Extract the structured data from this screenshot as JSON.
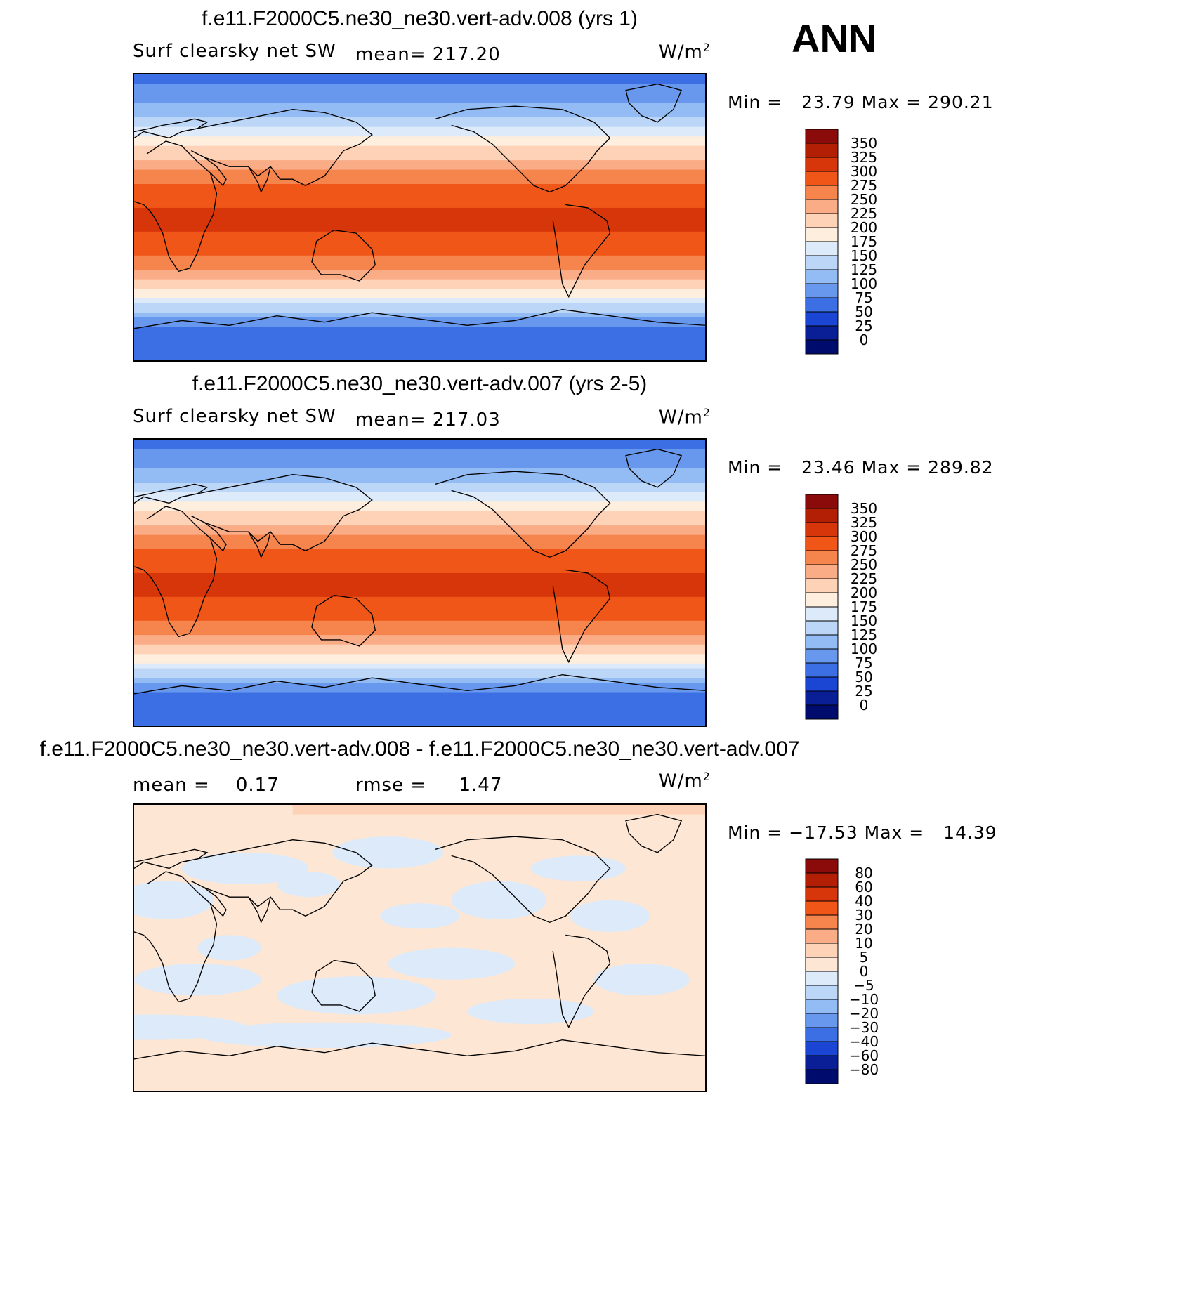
{
  "season": "ANN",
  "unit_label": "W/m",
  "unit_sup": "2",
  "panels": [
    {
      "title": "f.e11.F2000C5.ne30_ne30.vert-adv.008 (yrs 1)",
      "variable": "Surf clearsky net SW",
      "mean_text": "mean= 217.20",
      "minmax_text": "Min =   23.79 Max = 290.21"
    },
    {
      "title": "f.e11.F2000C5.ne30_ne30.vert-adv.007 (yrs 2-5)",
      "variable": "Surf clearsky net SW",
      "mean_text": "mean= 217.03",
      "minmax_text": "Min =   23.46 Max = 289.82"
    },
    {
      "title": "f.e11.F2000C5.ne30_ne30.vert-adv.008 - f.e11.F2000C5.ne30_ne30.vert-adv.007",
      "mean_text": "mean =    0.17",
      "rmse_text": "rmse =     1.47",
      "minmax_text": "Min = −17.53 Max =   14.39"
    }
  ],
  "chart_data": [
    {
      "type": "heatmap",
      "title": "f.e11.F2000C5.ne30_ne30.vert-adv.008 (yrs 1)",
      "levels": [
        "350",
        "325",
        "300",
        "275",
        "250",
        "225",
        "200",
        "175",
        "150",
        "125",
        "100",
        "75",
        "50",
        "25",
        "0"
      ],
      "colors": [
        "#8b0a0a",
        "#b31f05",
        "#d6360a",
        "#f05618",
        "#f5844d",
        "#f9ac85",
        "#fdd2b7",
        "#fdeedd",
        "#dceafa",
        "#bcd6f7",
        "#93bbf4",
        "#6898ee",
        "#3c6fe4",
        "#1b45d3",
        "#0a1e96",
        "#000b6e"
      ],
      "zonal_profile": [
        [
          90,
          40
        ],
        [
          70,
          80
        ],
        [
          55,
          130
        ],
        [
          40,
          190
        ],
        [
          25,
          240
        ],
        [
          10,
          270
        ],
        [
          0,
          280
        ],
        [
          -10,
          275
        ],
        [
          -25,
          250
        ],
        [
          -40,
          200
        ],
        [
          -50,
          160
        ],
        [
          -60,
          90
        ],
        [
          -70,
          40
        ],
        [
          -90,
          30
        ]
      ]
    },
    {
      "type": "heatmap",
      "title": "f.e11.F2000C5.ne30_ne30.vert-adv.007 (yrs 2-5)",
      "levels": [
        "350",
        "325",
        "300",
        "275",
        "250",
        "225",
        "200",
        "175",
        "150",
        "125",
        "100",
        "75",
        "50",
        "25",
        "0"
      ],
      "colors": [
        "#8b0a0a",
        "#b31f05",
        "#d6360a",
        "#f05618",
        "#f5844d",
        "#f9ac85",
        "#fdd2b7",
        "#fdeedd",
        "#dceafa",
        "#bcd6f7",
        "#93bbf4",
        "#6898ee",
        "#3c6fe4",
        "#1b45d3",
        "#0a1e96",
        "#000b6e"
      ],
      "zonal_profile": [
        [
          90,
          40
        ],
        [
          70,
          80
        ],
        [
          55,
          130
        ],
        [
          40,
          190
        ],
        [
          25,
          240
        ],
        [
          10,
          270
        ],
        [
          0,
          280
        ],
        [
          -10,
          275
        ],
        [
          -25,
          250
        ],
        [
          -40,
          200
        ],
        [
          -50,
          160
        ],
        [
          -60,
          90
        ],
        [
          -70,
          40
        ],
        [
          -90,
          30
        ]
      ]
    },
    {
      "type": "heatmap",
      "title": "f.e11.F2000C5.ne30_ne30.vert-adv.008 - f.e11.F2000C5.ne30_ne30.vert-adv.007",
      "levels": [
        "80",
        "60",
        "40",
        "30",
        "20",
        "10",
        "5",
        "0",
        "−5",
        "−10",
        "−20",
        "−30",
        "−40",
        "−60",
        "−80"
      ],
      "colors": [
        "#8b0a0a",
        "#b31f05",
        "#d6360a",
        "#f05618",
        "#f5844d",
        "#f9ac85",
        "#fdd2b7",
        "#fde6d3",
        "#dceafa",
        "#bcd6f7",
        "#93bbf4",
        "#6898ee",
        "#3c6fe4",
        "#1b45d3",
        "#0a1e96",
        "#000b6e"
      ]
    }
  ]
}
